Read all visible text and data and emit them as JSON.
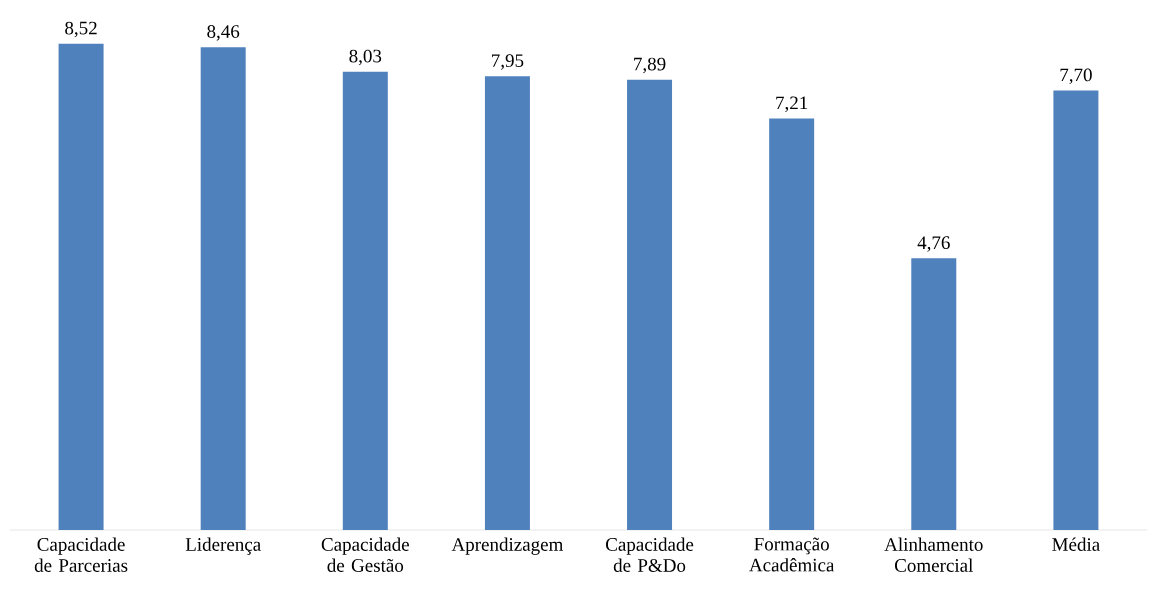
{
  "chart_data": {
    "type": "bar",
    "categories": [
      "Capacidade de Parcerias",
      "Liderença",
      "Capacidade de Gestão",
      "Aprendizagem",
      "Capacidade de P&Do",
      "Formação Acadêmica",
      "Alinhamento Comercial",
      "Média"
    ],
    "values": [
      8.52,
      8.46,
      8.03,
      7.95,
      7.89,
      7.21,
      4.76,
      7.7
    ],
    "value_labels": [
      "8,52",
      "8,46",
      "8,03",
      "7,95",
      "7,89",
      "7,21",
      "4,76",
      "7,70"
    ],
    "color": "#4f81bd"
  }
}
